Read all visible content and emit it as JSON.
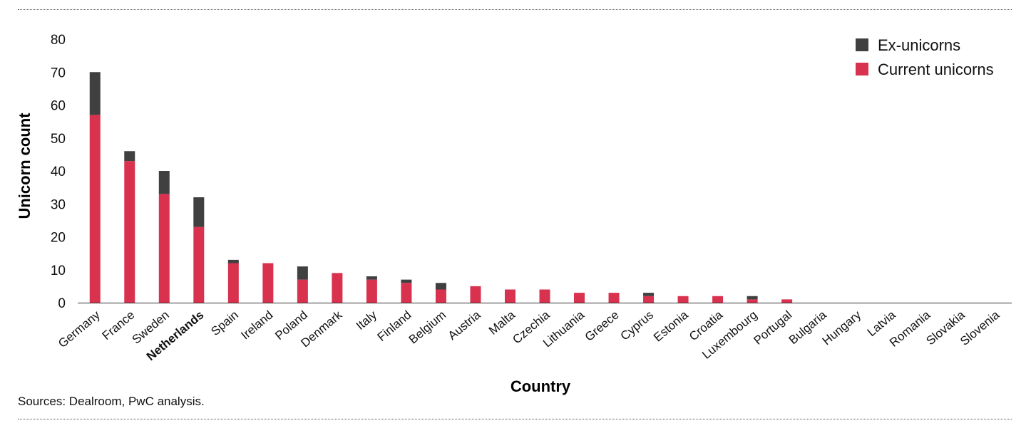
{
  "chart_data": {
    "type": "bar",
    "stacked": true,
    "categories": [
      "Germany",
      "France",
      "Sweden",
      "Netherlands",
      "Spain",
      "Ireland",
      "Poland",
      "Denmark",
      "Italy",
      "Finland",
      "Belgium",
      "Austria",
      "Malta",
      "Czechia",
      "Lithuania",
      "Greece",
      "Cyprus",
      "Estonia",
      "Croatia",
      "Luxembourg",
      "Portugal",
      "Bulgaria",
      "Hungary",
      "Latvia",
      "Romania",
      "Slovakia",
      "Slovenia"
    ],
    "highlighted_category": "Netherlands",
    "series": [
      {
        "name": "Current unicorns",
        "color": "#d9324f",
        "values": [
          57,
          43,
          33,
          23,
          12,
          12,
          7,
          9,
          7,
          6,
          4,
          5,
          4,
          4,
          3,
          3,
          2,
          2,
          2,
          1,
          1,
          0,
          0,
          0,
          0,
          0,
          0
        ]
      },
      {
        "name": "Ex-unicorns",
        "color": "#404040",
        "values": [
          13,
          3,
          7,
          9,
          1,
          0,
          4,
          0,
          1,
          1,
          2,
          0,
          0,
          0,
          0,
          0,
          1,
          0,
          0,
          1,
          0,
          0,
          0,
          0,
          0,
          0,
          0
        ]
      }
    ],
    "xlabel": "Country",
    "ylabel": "Unicorn count",
    "ylim": [
      0,
      80
    ],
    "yticks": [
      0,
      10,
      20,
      30,
      40,
      50,
      60,
      70,
      80
    ],
    "grid": false,
    "legend": {
      "position": "top-right",
      "order": [
        "Ex-unicorns",
        "Current unicorns"
      ]
    }
  },
  "source_note": "Sources: Dealroom, PwC analysis."
}
